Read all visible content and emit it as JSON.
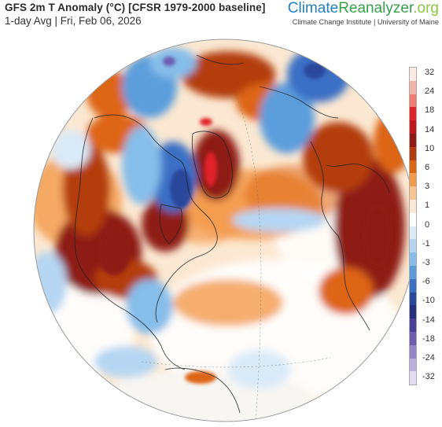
{
  "header": {
    "title": "GFS 2m T Anomaly (°C) [CFSR 1979-2000 baseline]",
    "subtitle": "1-day Avg | Fri, Feb 06, 2026"
  },
  "brand": {
    "name_part1": "Climate",
    "name_part2": "Reanalyzer",
    "name_part3": ".org",
    "affiliation": "Climate Change Institute | University of Maine"
  },
  "colorbar": {
    "labels": [
      "32",
      "24",
      "18",
      "14",
      "10",
      "6",
      "3",
      "1",
      "0",
      "-1",
      "-3",
      "-6",
      "-10",
      "-14",
      "-18",
      "-24",
      "-32"
    ],
    "colors": [
      "#fce9e4",
      "#f4b3a9",
      "#ef7b74",
      "#e0222b",
      "#c0161e",
      "#8e1b16",
      "#b33c0e",
      "#dd6512",
      "#f39a4b",
      "#f8c591",
      "#fbe8d2",
      "#ffffff",
      "#dbeaf7",
      "#b6d5f1",
      "#86bde9",
      "#5b9ddb",
      "#3a6fc4",
      "#2a479c",
      "#24307e",
      "#4a3f97",
      "#6d5cb0",
      "#9585c8",
      "#bbafdc",
      "#e3dcf0"
    ]
  },
  "map": {
    "projection": "orthographic",
    "center": "North Atlantic / North Pole",
    "palette": {
      "strong_warm": "#8e1b16",
      "warm": "#dd6512",
      "mild_warm": "#f8c591",
      "neutral": "#ffffff",
      "mild_cold": "#b6d5f1",
      "cold": "#5b9ddb",
      "strong_cold": "#2a479c",
      "extreme_cold": "#6d5cb0"
    }
  }
}
